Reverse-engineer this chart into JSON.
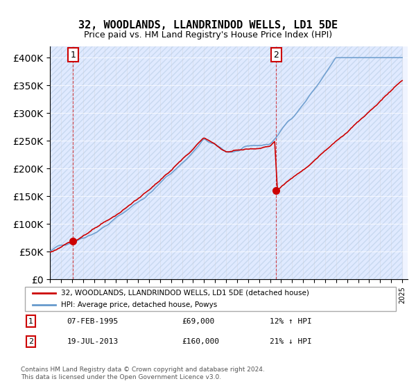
{
  "title": "32, WOODLANDS, LLANDRINDOD WELLS, LD1 5DE",
  "subtitle": "Price paid vs. HM Land Registry's House Price Index (HPI)",
  "ylabel": "",
  "legend_label1": "32, WOODLANDS, LLANDRINDOD WELLS, LD1 5DE (detached house)",
  "legend_label2": "HPI: Average price, detached house, Powys",
  "annotation1_label": "1",
  "annotation1_date": "07-FEB-1995",
  "annotation1_price": "£69,000",
  "annotation1_hpi": "12% ↑ HPI",
  "annotation2_label": "2",
  "annotation2_date": "19-JUL-2013",
  "annotation2_price": "£160,000",
  "annotation2_hpi": "21% ↓ HPI",
  "footer": "Contains HM Land Registry data © Crown copyright and database right 2024.\nThis data is licensed under the Open Government Licence v3.0.",
  "sale1_year": 1995.1,
  "sale1_price": 69000,
  "sale2_year": 2013.55,
  "sale2_price": 160000,
  "hpi_color": "#6699cc",
  "price_color": "#cc0000",
  "dashed_color": "#cc0000",
  "background_hatch": "#e8eeff",
  "ylim_max": 420000,
  "ylim_min": 0
}
